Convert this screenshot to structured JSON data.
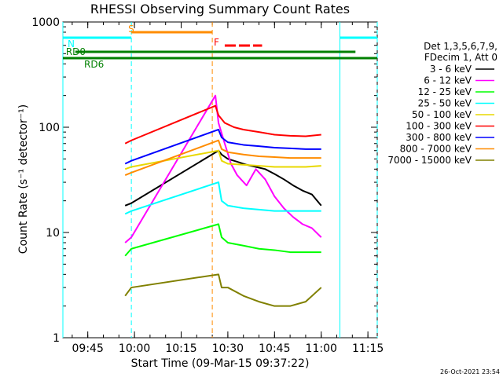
{
  "chart_data": {
    "type": "line",
    "title": "RHESSI Observing Summary Count Rates",
    "xlabel": "Start Time (09-Mar-15 09:37:22)",
    "ylabel": "Count Rate (s⁻¹ detector⁻¹)",
    "y_scale": "log",
    "xlim": [
      "09:37",
      "11:18"
    ],
    "ylim": [
      1,
      1000
    ],
    "x_ticks": [
      "09:45",
      "10:00",
      "10:15",
      "10:30",
      "10:45",
      "11:00",
      "11:15"
    ],
    "y_ticks": [
      "1",
      "10",
      "100",
      "1000"
    ],
    "legend_header": [
      "Det 1,3,5,6,7,9,",
      "FDecim 1, Att 0"
    ],
    "legend_position": "right",
    "timestamp": "26-Oct-2021 23:54",
    "series": [
      {
        "name": "3 - 6 keV",
        "color": "#000000",
        "x": [
          "09:57",
          "09:59",
          "10:27",
          "10:28",
          "10:30",
          "10:33",
          "10:36",
          "10:39",
          "10:42",
          "10:45",
          "10:48",
          "10:51",
          "10:54",
          "10:57",
          "11:00"
        ],
        "y": [
          18,
          19,
          60,
          55,
          50,
          47,
          44,
          42,
          40,
          36,
          32,
          28,
          25,
          23,
          18
        ]
      },
      {
        "name": "6 - 12 keV",
        "color": "#ff00ff",
        "x": [
          "09:57",
          "09:59",
          "10:26",
          "10:27",
          "10:29",
          "10:31",
          "10:33",
          "10:36",
          "10:39",
          "10:42",
          "10:45",
          "10:48",
          "10:51",
          "10:54",
          "10:57",
          "11:00"
        ],
        "y": [
          8,
          9,
          200,
          110,
          70,
          45,
          35,
          28,
          40,
          32,
          22,
          17,
          14,
          12,
          11,
          9
        ]
      },
      {
        "name": "12 - 25 keV",
        "color": "#00ff00",
        "x": [
          "09:57",
          "09:59",
          "10:27",
          "10:28",
          "10:30",
          "10:35",
          "10:40",
          "10:45",
          "10:50",
          "10:55",
          "11:00"
        ],
        "y": [
          6,
          7,
          12,
          9,
          8,
          7.5,
          7,
          6.8,
          6.5,
          6.5,
          6.5
        ]
      },
      {
        "name": "25 - 50 keV",
        "color": "#00ffff",
        "x": [
          "09:57",
          "09:59",
          "10:27",
          "10:28",
          "10:30",
          "10:35",
          "10:40",
          "10:45",
          "10:50",
          "10:55",
          "11:00"
        ],
        "y": [
          15,
          16,
          30,
          20,
          18,
          17,
          16.5,
          16,
          16,
          16,
          16
        ]
      },
      {
        "name": "50 - 100 keV",
        "color": "#e8d800",
        "x": [
          "09:57",
          "09:59",
          "10:27",
          "10:28",
          "10:30",
          "10:35",
          "10:40",
          "10:45",
          "10:50",
          "10:55",
          "11:00"
        ],
        "y": [
          40,
          42,
          60,
          48,
          45,
          44,
          43,
          42,
          42,
          42,
          43
        ]
      },
      {
        "name": "100 - 300 keV",
        "color": "#ff0000",
        "x": [
          "09:57",
          "09:59",
          "10:26",
          "10:27",
          "10:29",
          "10:32",
          "10:35",
          "10:40",
          "10:45",
          "10:50",
          "10:55",
          "11:00"
        ],
        "y": [
          70,
          75,
          160,
          130,
          110,
          100,
          95,
          90,
          85,
          83,
          82,
          85
        ]
      },
      {
        "name": "300 - 800 keV",
        "color": "#0000ff",
        "x": [
          "09:57",
          "09:59",
          "10:27",
          "10:28",
          "10:30",
          "10:35",
          "10:40",
          "10:45",
          "10:50",
          "10:55",
          "11:00"
        ],
        "y": [
          45,
          48,
          95,
          80,
          72,
          68,
          66,
          64,
          63,
          62,
          62
        ]
      },
      {
        "name": "800 - 7000 keV",
        "color": "#ff8c00",
        "x": [
          "09:57",
          "09:59",
          "10:27",
          "10:28",
          "10:30",
          "10:35",
          "10:40",
          "10:45",
          "10:50",
          "10:55",
          "11:00"
        ],
        "y": [
          35,
          37,
          75,
          62,
          58,
          55,
          53,
          52,
          51,
          51,
          51
        ]
      },
      {
        "name": "7000 - 15000 keV",
        "color": "#808000",
        "x": [
          "09:57",
          "09:59",
          "10:27",
          "10:28",
          "10:30",
          "10:35",
          "10:40",
          "10:45",
          "10:50",
          "10:55",
          "11:00"
        ],
        "y": [
          2.5,
          3,
          4,
          3,
          3,
          2.5,
          2.2,
          2,
          2,
          2.2,
          3
        ]
      }
    ],
    "flag_bars": [
      {
        "label": "S",
        "color": "#ff8c00",
        "start": "09:59",
        "end": "10:25"
      },
      {
        "label": "N",
        "color": "#00ffff",
        "start": "09:37",
        "end": "09:59"
      },
      {
        "label": "N",
        "color": "#00ffff",
        "start": "11:06",
        "end": "11:18"
      },
      {
        "label": "F",
        "color": "#ff0000",
        "start": "10:29",
        "end": "10:41"
      },
      {
        "label": "RD0",
        "color": "#008000",
        "start": "09:41",
        "end": "11:11"
      },
      {
        "label": "RD6",
        "color": "#008000",
        "start": "09:37",
        "end": "11:18"
      }
    ],
    "vertical_markers": [
      {
        "color": "#00ffff",
        "style": "solid",
        "time": "09:37"
      },
      {
        "color": "#00ffff",
        "style": "dashed",
        "time": "09:59"
      },
      {
        "color": "#ff8c00",
        "style": "dashed",
        "time": "10:25"
      },
      {
        "color": "#00ffff",
        "style": "solid",
        "time": "11:06"
      },
      {
        "color": "#00ffff",
        "style": "dashed",
        "time": "11:18"
      }
    ]
  }
}
